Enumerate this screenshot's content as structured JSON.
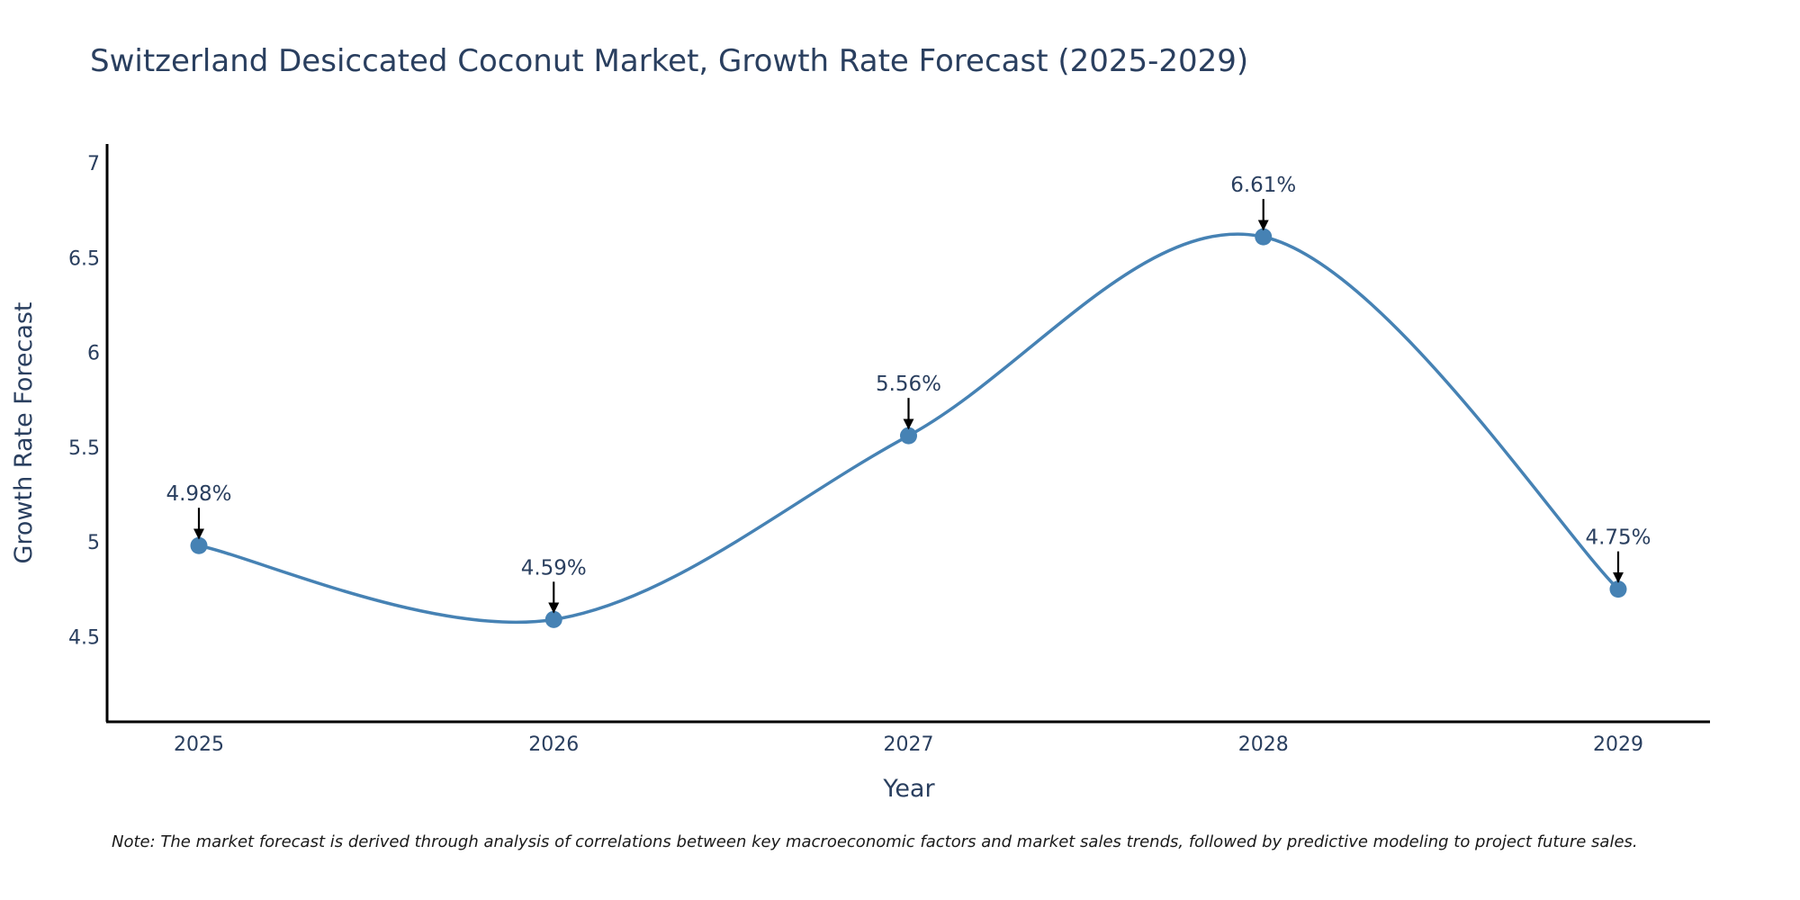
{
  "chart_data": {
    "type": "line",
    "title": "Switzerland Desiccated Coconut Market, Growth Rate Forecast (2025-2029)",
    "xlabel": "Year",
    "ylabel": "Growth Rate Forecast",
    "categories": [
      "2025",
      "2026",
      "2027",
      "2028",
      "2029"
    ],
    "values": [
      4.98,
      4.59,
      5.56,
      6.61,
      4.75
    ],
    "data_labels": [
      "4.98%",
      "4.59%",
      "5.56%",
      "6.61%",
      "4.75%"
    ],
    "ylim": [
      4.05,
      7.1
    ],
    "y_ticks": [
      4.5,
      5,
      5.5,
      6,
      6.5,
      7
    ],
    "y_tick_labels": [
      "4.5",
      "5",
      "5.5",
      "6",
      "6.5",
      "7"
    ],
    "line_color": "#4682b4",
    "marker_color": "#4682b4",
    "arrow_color": "#000000",
    "smoothing": "spline",
    "grid": false,
    "note": "Note: The market forecast is derived through analysis of correlations between key macroeconomic factors and market sales trends, followed by predictive modeling to project future sales."
  }
}
